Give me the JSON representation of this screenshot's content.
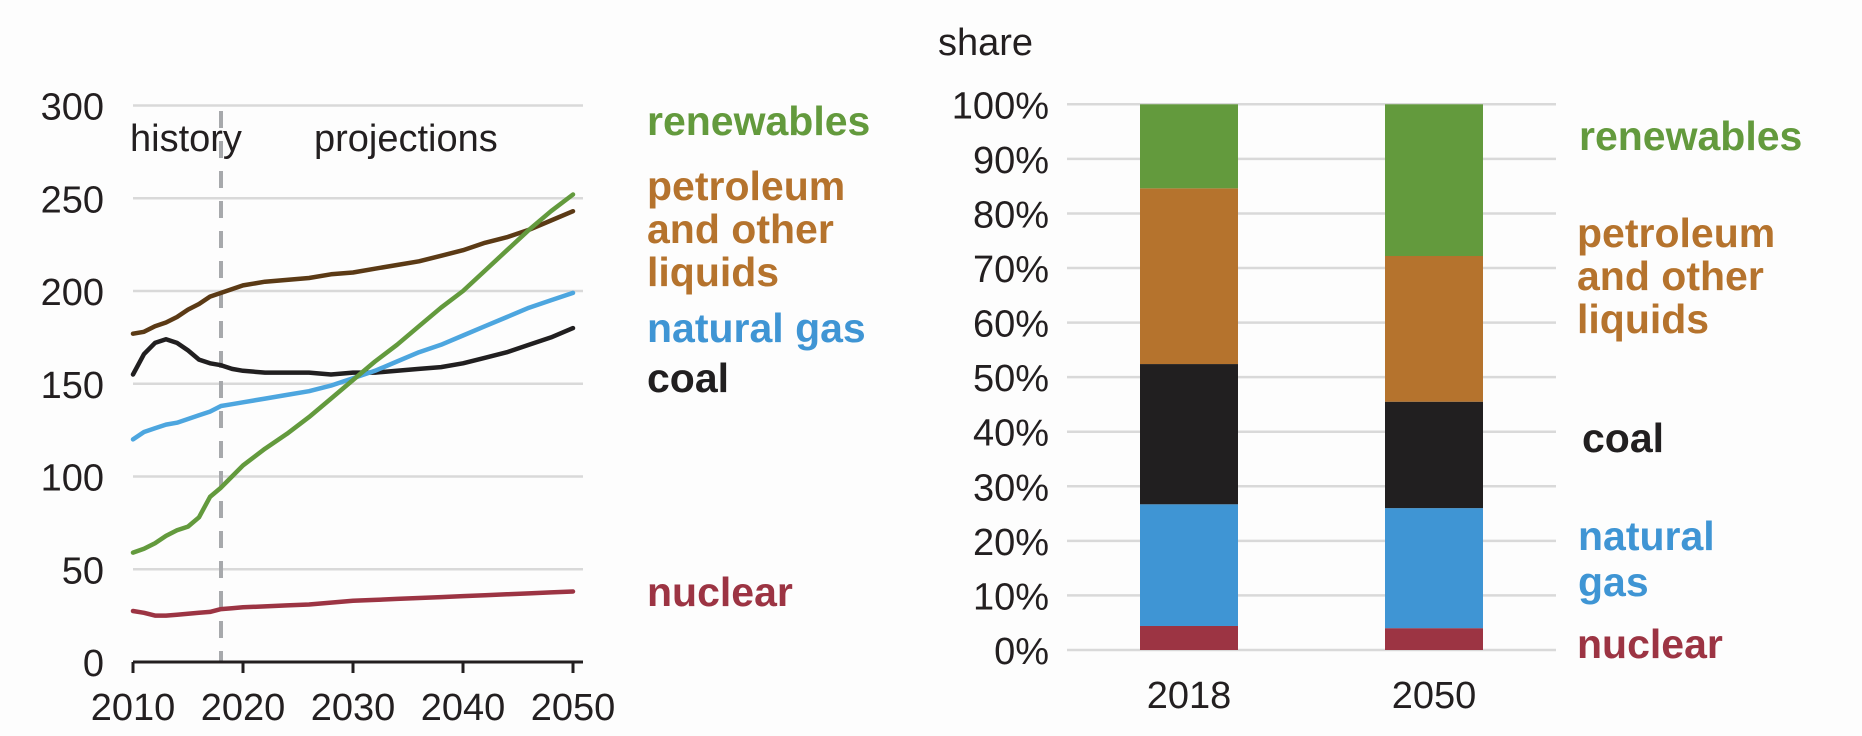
{
  "colors": {
    "renewables": "#639a3d",
    "petroleum_line": "#5b3a15",
    "petroleum_text": "#b5732d",
    "petroleum_bar": "#b5732d",
    "natural_gas_line": "#4da6df",
    "natural_gas_text": "#3f95d4",
    "natural_gas_bar": "#3f95d4",
    "coal": "#211f20",
    "nuclear": "#9c3443",
    "divider": "#a7a9ac"
  },
  "chart_data": [
    {
      "type": "line",
      "title": "",
      "xlabel": "",
      "ylabel": "",
      "xlim": [
        2010,
        2050
      ],
      "ylim": [
        0,
        300
      ],
      "yticks": [
        "0",
        "50",
        "100",
        "150",
        "200",
        "250",
        "300"
      ],
      "ytick_values": [
        0,
        50,
        100,
        150,
        200,
        250,
        300
      ],
      "xticks": [
        "2010",
        "2020",
        "2030",
        "2040",
        "2050"
      ],
      "xtick_values": [
        2010,
        2020,
        2030,
        2040,
        2050
      ],
      "grid": true,
      "annotations": {
        "history": "history",
        "projections": "projections",
        "divider_year": 2018
      },
      "x": [
        2010,
        2011,
        2012,
        2013,
        2014,
        2015,
        2016,
        2017,
        2018,
        2019,
        2020,
        2022,
        2024,
        2026,
        2028,
        2030,
        2032,
        2034,
        2036,
        2038,
        2040,
        2042,
        2044,
        2046,
        2048,
        2050
      ],
      "series": [
        {
          "key": "renewables",
          "name": "renewables",
          "label_lines": [
            "renewables"
          ],
          "values": [
            59,
            61,
            64,
            68,
            71,
            73,
            78,
            89,
            94,
            100,
            106,
            115,
            123,
            132,
            142,
            152,
            162,
            171,
            181,
            191,
            200,
            211,
            222,
            233,
            243,
            252
          ]
        },
        {
          "key": "petroleum",
          "name": "petroleum and other liquids",
          "label_lines": [
            "petroleum",
            "and other",
            "liquids"
          ],
          "values": [
            177,
            178,
            181,
            183,
            186,
            190,
            193,
            197,
            199,
            201,
            203,
            205,
            206,
            207,
            209,
            210,
            212,
            214,
            216,
            219,
            222,
            226,
            229,
            233,
            238,
            243
          ]
        },
        {
          "key": "natural_gas",
          "name": "natural gas",
          "label_lines": [
            "natural gas"
          ],
          "values": [
            120,
            124,
            126,
            128,
            129,
            131,
            133,
            135,
            138,
            139,
            140,
            142,
            144,
            146,
            149,
            153,
            157,
            162,
            167,
            171,
            176,
            181,
            186,
            191,
            195,
            199
          ]
        },
        {
          "key": "coal",
          "name": "coal",
          "label_lines": [
            "coal"
          ],
          "values": [
            155,
            166,
            172,
            174,
            172,
            168,
            163,
            161,
            160,
            158,
            157,
            156,
            156,
            156,
            155,
            156,
            156,
            157,
            158,
            159,
            161,
            164,
            167,
            171,
            175,
            180
          ]
        },
        {
          "key": "nuclear",
          "name": "nuclear",
          "label_lines": [
            "nuclear"
          ],
          "values": [
            27.5,
            26.5,
            25,
            25,
            25.5,
            26,
            26.5,
            27,
            28.5,
            29,
            29.5,
            30,
            30.5,
            31,
            32,
            33,
            33.5,
            34,
            34.5,
            35,
            35.5,
            36,
            36.5,
            37,
            37.5,
            38
          ]
        }
      ]
    },
    {
      "type": "bar",
      "stacked": true,
      "title": "",
      "ylabel": "share",
      "ylim": [
        0,
        100
      ],
      "yticks": [
        "0%",
        "10%",
        "20%",
        "30%",
        "40%",
        "50%",
        "60%",
        "70%",
        "80%",
        "90%",
        "100%"
      ],
      "ytick_values": [
        0,
        10,
        20,
        30,
        40,
        50,
        60,
        70,
        80,
        90,
        100
      ],
      "grid": true,
      "categories": [
        "2018",
        "2050"
      ],
      "series": [
        {
          "key": "nuclear",
          "name": "nuclear",
          "label_lines": [
            "nuclear"
          ],
          "values": [
            4.4,
            4.0
          ]
        },
        {
          "key": "natural_gas",
          "name": "natural gas",
          "label_lines": [
            "natural",
            "gas"
          ],
          "values": [
            22.3,
            22.0
          ]
        },
        {
          "key": "coal",
          "name": "coal",
          "label_lines": [
            "coal"
          ],
          "values": [
            25.7,
            19.5
          ]
        },
        {
          "key": "petroleum",
          "name": "petroleum and other liquids",
          "label_lines": [
            "petroleum",
            "and other",
            "liquids"
          ],
          "values": [
            32.2,
            26.7
          ]
        },
        {
          "key": "renewables",
          "name": "renewables",
          "label_lines": [
            "renewables"
          ],
          "values": [
            15.4,
            27.8
          ]
        }
      ]
    }
  ]
}
